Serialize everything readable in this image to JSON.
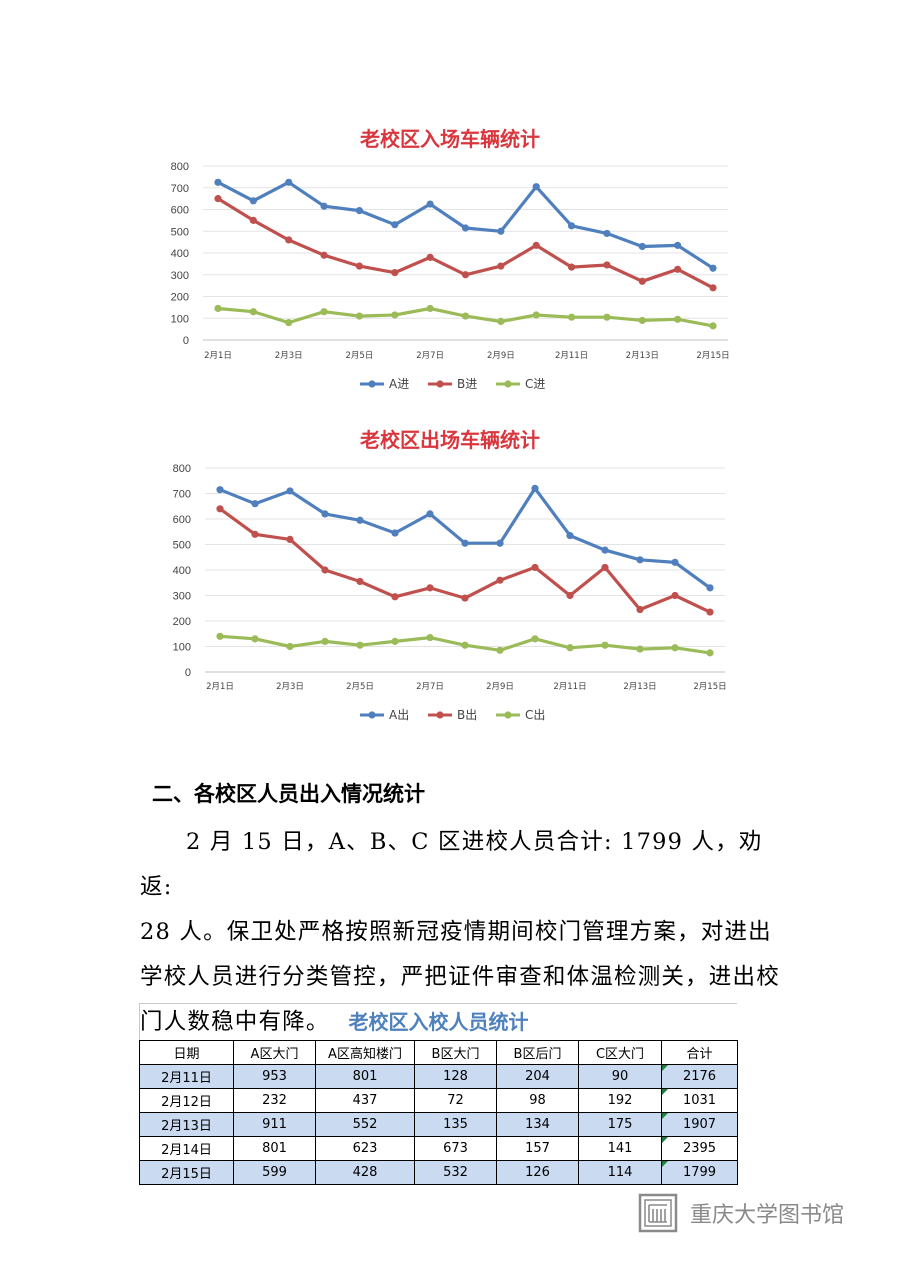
{
  "charts": [
    {
      "title": "老校区入场车辆统计",
      "chart_data": {
        "type": "line",
        "title": "老校区入场车辆统计",
        "x": [
          "2月1日",
          "2月2日",
          "2月3日",
          "2月4日",
          "2月5日",
          "2月6日",
          "2月7日",
          "2月8日",
          "2月9日",
          "2月10日",
          "2月11日",
          "2月12日",
          "2月13日",
          "2月14日",
          "2月15日"
        ],
        "x_tick_labels": [
          "2月1日",
          "2月3日",
          "2月5日",
          "2月7日",
          "2月9日",
          "2月11日",
          "2月13日",
          "2月15日"
        ],
        "y_ticks": [
          "0",
          "100",
          "200",
          "300",
          "400",
          "500",
          "600",
          "700",
          "800"
        ],
        "ylim": [
          0,
          800
        ],
        "grid": true,
        "legend_position": "bottom",
        "series": [
          {
            "name": "A进",
            "color": "#4f7fbd",
            "values": [
              725,
              640,
              725,
              615,
              595,
              530,
              625,
              515,
              500,
              705,
              525,
              490,
              430,
              435,
              330
            ]
          },
          {
            "name": "B进",
            "color": "#c0504d",
            "values": [
              650,
              550,
              460,
              390,
              340,
              310,
              380,
              300,
              340,
              435,
              335,
              345,
              270,
              325,
              240
            ]
          },
          {
            "name": "C进",
            "color": "#9bbb59",
            "values": [
              145,
              130,
              80,
              130,
              110,
              115,
              145,
              110,
              85,
              115,
              105,
              105,
              90,
              95,
              65
            ]
          }
        ]
      }
    },
    {
      "title": "老校区出场车辆统计",
      "chart_data": {
        "type": "line",
        "title": "老校区出场车辆统计",
        "x": [
          "2月1日",
          "2月2日",
          "2月3日",
          "2月4日",
          "2月5日",
          "2月6日",
          "2月7日",
          "2月8日",
          "2月9日",
          "2月10日",
          "2月11日",
          "2月12日",
          "2月13日",
          "2月14日",
          "2月15日"
        ],
        "x_tick_labels": [
          "2月1日",
          "2月3日",
          "2月5日",
          "2月7日",
          "2月9日",
          "2月11日",
          "2月13日",
          "2月15日"
        ],
        "y_ticks": [
          "0",
          "100",
          "200",
          "300",
          "400",
          "500",
          "600",
          "700",
          "800"
        ],
        "ylim": [
          0,
          800
        ],
        "grid": true,
        "legend_position": "bottom",
        "series": [
          {
            "name": "A出",
            "color": "#4f7fbd",
            "values": [
              715,
              660,
              710,
              620,
              595,
              545,
              620,
              505,
              505,
              720,
              535,
              478,
              440,
              430,
              330
            ]
          },
          {
            "name": "B出",
            "color": "#c0504d",
            "values": [
              640,
              540,
              520,
              400,
              355,
              295,
              330,
              290,
              360,
              410,
              300,
              410,
              245,
              300,
              235
            ]
          },
          {
            "name": "C出",
            "color": "#9bbb59",
            "values": [
              140,
              130,
              100,
              120,
              105,
              120,
              135,
              105,
              85,
              130,
              95,
              105,
              90,
              95,
              75
            ]
          }
        ]
      }
    }
  ],
  "section": {
    "heading": "二、各校区人员出入情况统计",
    "paragraph_first": "2 月 15 日，A、B、C 区进校人员合计: 1799 人，劝返:",
    "paragraph_rest": "28 人。保卫处严格按照新冠疫情期间校门管理方案，对进出学校人员进行分类管控，严把证件审查和体温检测关，进出校门人数稳中有降。"
  },
  "table": {
    "title": "老校区入校人员统计",
    "headers": [
      "日期",
      "A区大门",
      "A区高知楼门",
      "B区大门",
      "B区后门",
      "C区大门",
      "合计"
    ],
    "rows": [
      [
        "2月11日",
        "953",
        "801",
        "128",
        "204",
        "90",
        "2176"
      ],
      [
        "2月12日",
        "232",
        "437",
        "72",
        "98",
        "192",
        "1031"
      ],
      [
        "2月13日",
        "911",
        "552",
        "135",
        "134",
        "175",
        "1907"
      ],
      [
        "2月14日",
        "801",
        "623",
        "673",
        "157",
        "141",
        "2395"
      ],
      [
        "2月15日",
        "599",
        "428",
        "532",
        "126",
        "114",
        "1799"
      ]
    ],
    "colors": {
      "title": "#4f81bd",
      "shaded_row": "#c9daf1",
      "corner_mark": "#1e7b3a"
    }
  },
  "watermark": {
    "text": "重庆大学图书馆",
    "icon": "library-seal-icon"
  }
}
